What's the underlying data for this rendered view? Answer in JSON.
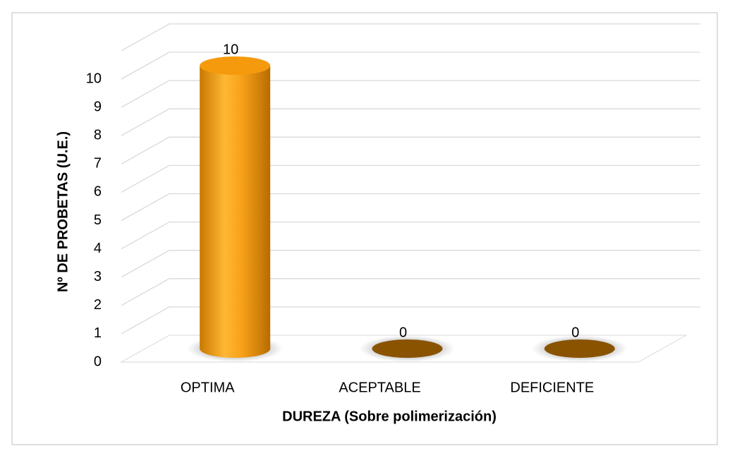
{
  "chart_data": {
    "type": "bar3d",
    "x_label": "DUREZA (Sobre polimerización)",
    "y_label": "Nº DE PROBETAS (U.E.)",
    "categories": [
      "OPTIMA",
      "ACEPTABLE",
      "DEFICIENTE"
    ],
    "values": [
      10,
      0,
      0
    ],
    "color": "#f5a21b",
    "ylim": [
      0,
      11
    ],
    "yticks": [
      0,
      1,
      2,
      3,
      4,
      5,
      6,
      7,
      8,
      9,
      10
    ],
    "grid": true
  }
}
